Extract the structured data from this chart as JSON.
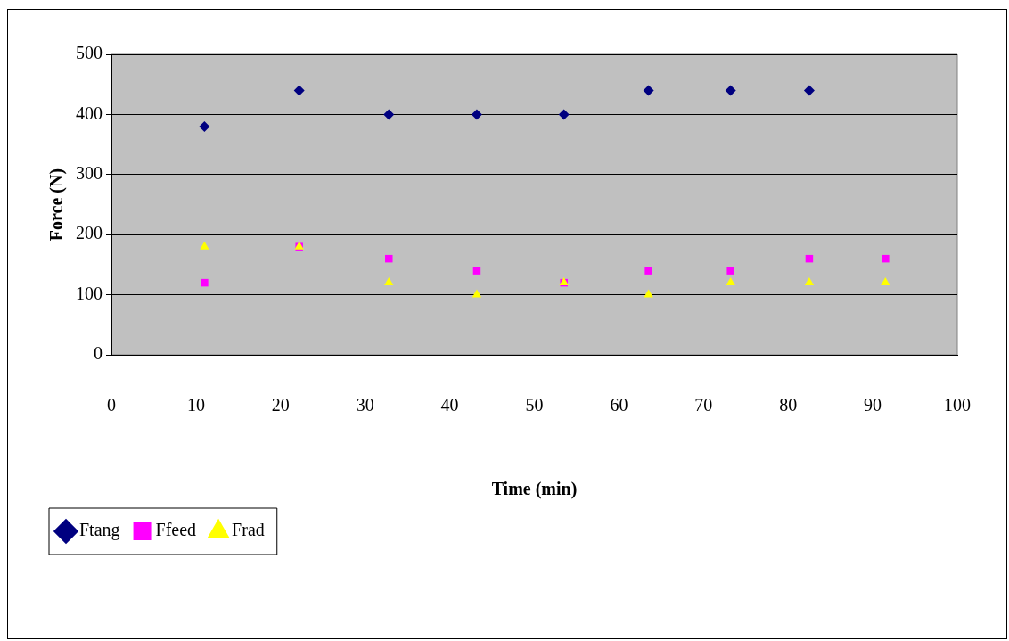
{
  "chart_data": {
    "type": "scatter",
    "xlabel": "Time (min)",
    "ylabel": "Force (N)",
    "xlim": [
      0,
      100
    ],
    "xticks": [
      0,
      10,
      20,
      30,
      40,
      50,
      60,
      70,
      80,
      90,
      100
    ],
    "ylim": [
      0,
      500
    ],
    "yticks": [
      0,
      100,
      200,
      300,
      400,
      500
    ],
    "grid": "y",
    "legend": "bottom left",
    "series": [
      {
        "name": "Ftang",
        "color": "#000080",
        "marker": "diamond",
        "x": [
          11,
          22.2,
          32.8,
          43.2,
          53.5,
          63.5,
          73.2,
          82.5
        ],
        "values": [
          380,
          440,
          400,
          400,
          400,
          440,
          440,
          440
        ]
      },
      {
        "name": "Ffeed",
        "color": "#ff00ff",
        "marker": "square",
        "x": [
          11,
          22.2,
          32.8,
          43.2,
          53.5,
          63.5,
          73.2,
          82.5,
          91.5
        ],
        "values": [
          120,
          180,
          160,
          140,
          120,
          140,
          140,
          160,
          160
        ]
      },
      {
        "name": "Frad",
        "color": "#ffff00",
        "marker": "triangle",
        "x": [
          11,
          22.2,
          32.8,
          43.2,
          53.5,
          63.5,
          73.2,
          82.5,
          91.5
        ],
        "values": [
          180,
          180,
          120,
          100,
          120,
          100,
          120,
          120,
          120
        ]
      }
    ]
  }
}
